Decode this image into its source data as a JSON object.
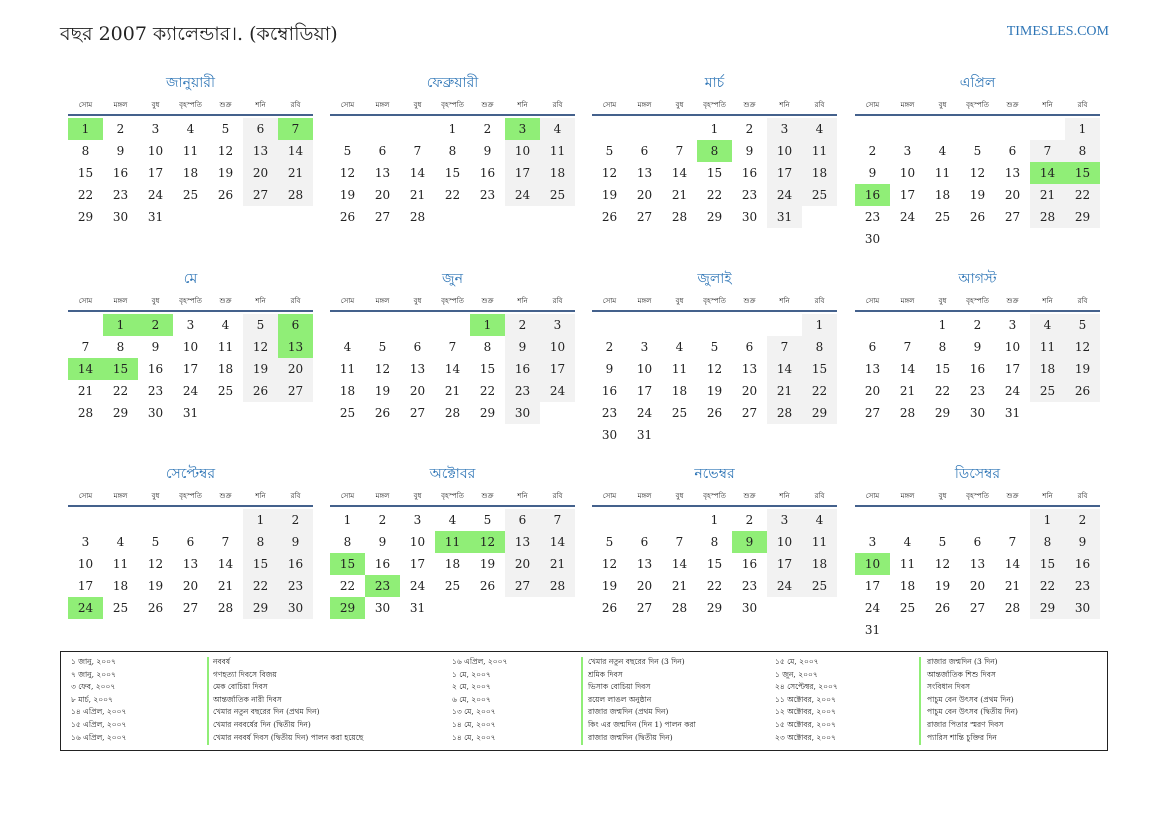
{
  "header": {
    "title": "বছর 2007 ক্যালেন্ডার।. (কম্বোডিয়া)",
    "site": "TIMESLES.COM"
  },
  "colors": {
    "accent": "#2e75b6",
    "holiday": "#90ee77",
    "weekend": "#f2f2f2",
    "rule": "#44618c"
  },
  "weekdays": [
    "সোম",
    "মঙ্গল",
    "বুধ",
    "বৃহস্পতি",
    "শুক্র",
    "শনি",
    "রবি"
  ],
  "months": [
    {
      "name": "জানুয়ারী",
      "offset": 0,
      "days": 31,
      "holidays": [
        1,
        7
      ]
    },
    {
      "name": "ফেব্রুয়ারী",
      "offset": 3,
      "days": 28,
      "holidays": [
        3
      ]
    },
    {
      "name": "মার্চ",
      "offset": 3,
      "days": 31,
      "holidays": [
        8
      ]
    },
    {
      "name": "এপ্রিল",
      "offset": 6,
      "days": 30,
      "holidays": [
        14,
        15,
        16
      ]
    },
    {
      "name": "মে",
      "offset": 1,
      "days": 31,
      "holidays": [
        1,
        2,
        6,
        13,
        14,
        15
      ]
    },
    {
      "name": "জুন",
      "offset": 4,
      "days": 30,
      "holidays": [
        1
      ]
    },
    {
      "name": "জুলাই",
      "offset": 6,
      "days": 31,
      "holidays": []
    },
    {
      "name": "আগস্ট",
      "offset": 2,
      "days": 31,
      "holidays": []
    },
    {
      "name": "সেপ্টেম্বর",
      "offset": 5,
      "days": 30,
      "holidays": [
        24
      ]
    },
    {
      "name": "অক্টোবর",
      "offset": 0,
      "days": 31,
      "holidays": [
        11,
        12,
        15,
        23,
        29
      ]
    },
    {
      "name": "নভেম্বর",
      "offset": 3,
      "days": 30,
      "holidays": [
        9
      ]
    },
    {
      "name": "ডিসেম্বর",
      "offset": 5,
      "days": 31,
      "holidays": [
        10
      ]
    }
  ],
  "holidays_list": [
    [
      {
        "date": "১ জানু, ২০০৭",
        "name": "নববর্ষ"
      },
      {
        "date": "৭ জানু, ২০০৭",
        "name": "গণহত্যা দিবসে বিজয়"
      },
      {
        "date": "৩ ফেব, ২০০৭",
        "name": "মেক বোচিয়া দিবস"
      },
      {
        "date": "৮ মার্চ, ২০০৭",
        "name": "আন্তর্জাতিক নারী দিবস"
      },
      {
        "date": "১৪ এপ্রিল, ২০০৭",
        "name": "খেমার নতুন বছরের দিন (প্রথম দিন)"
      },
      {
        "date": "১৫ এপ্রিল, ২০০৭",
        "name": "খেমার নববর্ষের দিন (দ্বিতীয় দিন)"
      },
      {
        "date": "১৬ এপ্রিল, ২০০৭",
        "name": "খেমার নববর্ষ দিবস (দ্বিতীয় দিন) পালন করা হয়েছে"
      }
    ],
    [
      {
        "date": "১৬ এপ্রিল, ২০০৭",
        "name": "খেমার নতুন বছরের দিন (3 দিন)"
      },
      {
        "date": "১ মে, ২০০৭",
        "name": "শ্রমিক দিবস"
      },
      {
        "date": "২ মে, ২০০৭",
        "name": "ভিসাক বোচিয়া দিবস"
      },
      {
        "date": "৬ মে, ২০০৭",
        "name": "রয়েল লাঙল অনুষ্ঠান"
      },
      {
        "date": "১৩ মে, ২০০৭",
        "name": "রাজার জন্মদিন (প্রথম দিন)"
      },
      {
        "date": "১৪ মে, ২০০৭",
        "name": "কিং এর জন্মদিন (দিন 1) পালন করা"
      },
      {
        "date": "১৪ মে, ২০০৭",
        "name": "রাজার জন্মদিন (দ্বিতীয় দিন)"
      }
    ],
    [
      {
        "date": "১৫ মে, ২০০৭",
        "name": "রাজার জন্মদিন (3 দিন)"
      },
      {
        "date": "১ জুন, ২০০৭",
        "name": "আন্তর্জাতিক শিশু দিবস"
      },
      {
        "date": "২৪ সেপ্টেম্বর, ২০০৭",
        "name": "সংবিধান দিবস"
      },
      {
        "date": "১১ অক্টোবর, ২০০৭",
        "name": "পাচুম বেন উৎসব (প্রথম দিন)"
      },
      {
        "date": "১২ অক্টোবর, ২০০৭",
        "name": "পাচুম বেন উৎসব (দ্বিতীয় দিন)"
      },
      {
        "date": "১৫ অক্টোবর, ২০০৭",
        "name": "রাজার পিতার স্মরণ দিবস"
      },
      {
        "date": "২৩ অক্টোবর, ২০০৭",
        "name": "প্যারিস শান্তি চুক্তির দিন"
      }
    ]
  ]
}
